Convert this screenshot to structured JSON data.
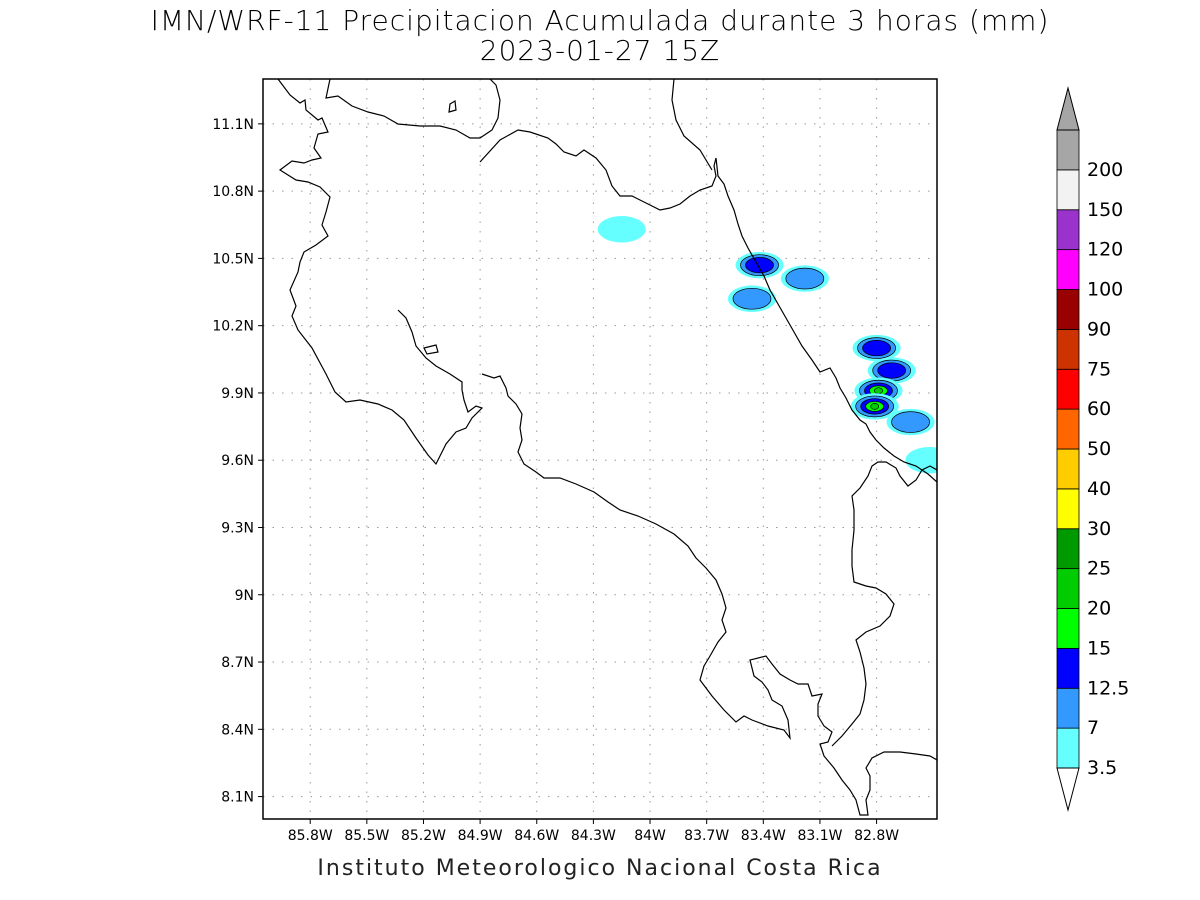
{
  "title": "IMN/WRF-11 Precipitacion Acumulada durante 3 horas (mm)",
  "subtitle": "2023-01-27 15Z",
  "footer": "Instituto Meteorologico Nacional Costa Rica",
  "map": {
    "projection": "lat-lon",
    "lon_range": [
      -86.05,
      -82.48
    ],
    "lat_range": [
      8.0,
      11.3
    ],
    "x_ticks": [
      {
        "lon": -85.8,
        "label": "85.8W"
      },
      {
        "lon": -85.5,
        "label": "85.5W"
      },
      {
        "lon": -85.2,
        "label": "85.2W"
      },
      {
        "lon": -84.9,
        "label": "84.9W"
      },
      {
        "lon": -84.6,
        "label": "84.6W"
      },
      {
        "lon": -84.3,
        "label": "84.3W"
      },
      {
        "lon": -84.0,
        "label": "84W"
      },
      {
        "lon": -83.7,
        "label": "83.7W"
      },
      {
        "lon": -83.4,
        "label": "83.4W"
      },
      {
        "lon": -83.1,
        "label": "83.1W"
      },
      {
        "lon": -82.8,
        "label": "82.8W"
      }
    ],
    "y_ticks": [
      {
        "lat": 11.1,
        "label": "11.1N"
      },
      {
        "lat": 10.8,
        "label": "10.8N"
      },
      {
        "lat": 10.5,
        "label": "10.5N"
      },
      {
        "lat": 10.2,
        "label": "10.2N"
      },
      {
        "lat": 9.9,
        "label": "9.9N"
      },
      {
        "lat": 9.6,
        "label": "9.6N"
      },
      {
        "lat": 9.3,
        "label": "9.3N"
      },
      {
        "lat": 9.0,
        "label": "9N"
      },
      {
        "lat": 8.7,
        "label": "8.7N"
      },
      {
        "lat": 8.4,
        "label": "8.4N"
      },
      {
        "lat": 8.1,
        "label": "8.1N"
      }
    ],
    "grid": true,
    "precip_cells": [
      {
        "lon": -84.15,
        "lat": 10.63,
        "level": 1
      },
      {
        "lon": -83.46,
        "lat": 10.32,
        "level": 2
      },
      {
        "lon": -83.42,
        "lat": 10.47,
        "level": 3
      },
      {
        "lon": -83.18,
        "lat": 10.41,
        "level": 2
      },
      {
        "lon": -82.8,
        "lat": 10.1,
        "level": 3
      },
      {
        "lon": -82.72,
        "lat": 10.0,
        "level": 3
      },
      {
        "lon": -82.79,
        "lat": 9.91,
        "level": 5
      },
      {
        "lon": -82.81,
        "lat": 9.84,
        "level": 5
      },
      {
        "lon": -82.62,
        "lat": 9.77,
        "level": 2
      },
      {
        "lon": -82.52,
        "lat": 9.6,
        "level": 1
      }
    ]
  },
  "colorbar": {
    "colors": [
      "#66ffff",
      "#3399ff",
      "#0000ff",
      "#00ff00",
      "#00cc00",
      "#009900",
      "#ffff00",
      "#ffcc00",
      "#ff6600",
      "#ff0000",
      "#cc3300",
      "#990000",
      "#ff00ff",
      "#9933cc",
      "#f2f2f2",
      "#a6a6a6"
    ],
    "labels": [
      "3.5",
      "7",
      "12.5",
      "15",
      "20",
      "25",
      "30",
      "40",
      "50",
      "60",
      "75",
      "90",
      "100",
      "120",
      "150",
      "200"
    ],
    "units": "mm"
  }
}
